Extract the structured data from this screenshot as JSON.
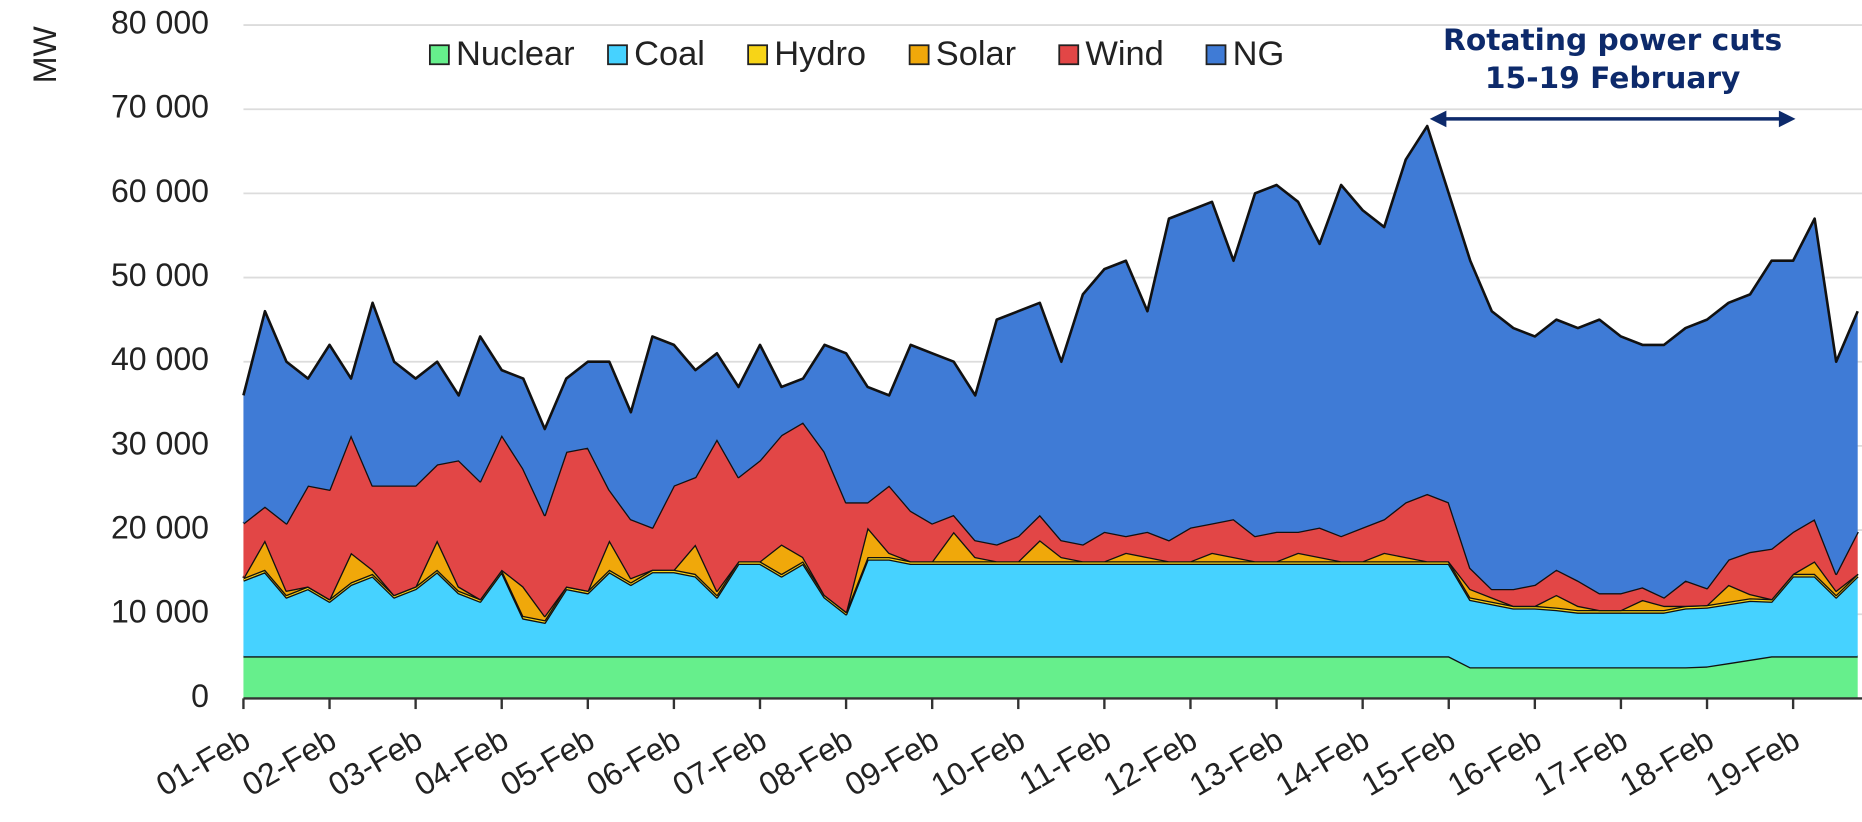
{
  "chart_data": {
    "type": "stacked_area",
    "y_label": "MW",
    "annotation": [
      "Rotating power cuts",
      "15-19 February"
    ],
    "categories": [
      "01-Feb",
      null,
      null,
      null,
      "02-Feb",
      null,
      null,
      null,
      "03-Feb",
      null,
      null,
      null,
      "04-Feb",
      null,
      null,
      null,
      "05-Feb",
      null,
      null,
      null,
      "06-Feb",
      null,
      null,
      null,
      "07-Feb",
      null,
      null,
      null,
      "08-Feb",
      null,
      null,
      null,
      "09-Feb",
      null,
      null,
      null,
      "10-Feb",
      null,
      null,
      null,
      "11-Feb",
      null,
      null,
      null,
      "12-Feb",
      null,
      null,
      null,
      "13-Feb",
      null,
      null,
      null,
      "14-Feb",
      null,
      null,
      null,
      "15-Feb",
      null,
      null,
      null,
      "16-Feb",
      null,
      null,
      null,
      "17-Feb",
      null,
      null,
      null,
      "18-Feb",
      null,
      null,
      null,
      "19-Feb",
      null,
      null,
      null
    ],
    "ylim": [
      0,
      80000
    ],
    "yticks": [
      0,
      {
        "value": 10000,
        "label": "10 000"
      },
      {
        "value": 20000,
        "label": "20 000"
      },
      {
        "value": 30000,
        "label": "30 000"
      },
      {
        "value": 40000,
        "label": "40 000"
      },
      {
        "value": 50000,
        "label": "50 000"
      },
      {
        "value": 60000,
        "label": "60 000"
      },
      {
        "value": 70000,
        "label": "70 000"
      },
      {
        "value": 80000,
        "label": "80 000"
      }
    ],
    "grid": true,
    "legend": "top",
    "series": [
      {
        "name": "Nuclear",
        "color": "#66ef8c",
        "values": [
          5000,
          5000,
          5000,
          5000,
          5000,
          5000,
          5000,
          5000,
          5000,
          5000,
          5000,
          5000,
          5000,
          5000,
          5000,
          5000,
          5000,
          5000,
          5000,
          5000,
          5000,
          5000,
          5000,
          5000,
          5000,
          5000,
          5000,
          5000,
          5000,
          5000,
          5000,
          5000,
          5000,
          5000,
          5000,
          5000,
          5000,
          5000,
          5000,
          5000,
          5000,
          5000,
          5000,
          5000,
          5000,
          5000,
          5000,
          5000,
          5000,
          5000,
          5000,
          5000,
          5000,
          5000,
          5000,
          5000,
          5000,
          3700,
          3700,
          3700,
          3700,
          3700,
          3700,
          3700,
          3700,
          3700,
          3700,
          3700,
          3800,
          4200,
          4600,
          5000,
          5000,
          5000,
          5000,
          5000
        ]
      },
      {
        "name": "Coal",
        "color": "#46d2ff",
        "values": [
          9000,
          10000,
          7000,
          8000,
          6500,
          8500,
          9500,
          7000,
          8000,
          10000,
          7500,
          6500,
          10000,
          4500,
          4000,
          8000,
          7500,
          10000,
          8500,
          10000,
          10000,
          9500,
          7000,
          11000,
          11000,
          9500,
          11000,
          7000,
          5000,
          11500,
          11500,
          11000,
          11000,
          11000,
          11000,
          11000,
          11000,
          11000,
          11000,
          11000,
          11000,
          11000,
          11000,
          11000,
          11000,
          11000,
          11000,
          11000,
          11000,
          11000,
          11000,
          11000,
          11000,
          11000,
          11000,
          11000,
          11000,
          8000,
          7500,
          7000,
          7000,
          6800,
          6500,
          6500,
          6500,
          6500,
          6500,
          7000,
          7000,
          7000,
          7000,
          6500,
          9500,
          9500,
          7000,
          9500
        ]
      },
      {
        "name": "Hydro",
        "color": "#f7d417",
        "values": [
          300,
          300,
          300,
          300,
          300,
          300,
          300,
          300,
          300,
          300,
          300,
          300,
          300,
          300,
          300,
          300,
          300,
          300,
          300,
          300,
          300,
          300,
          300,
          300,
          300,
          300,
          300,
          300,
          300,
          300,
          300,
          300,
          300,
          300,
          300,
          300,
          300,
          300,
          300,
          300,
          300,
          300,
          300,
          300,
          300,
          300,
          300,
          300,
          300,
          300,
          300,
          300,
          300,
          300,
          300,
          300,
          300,
          300,
          300,
          300,
          300,
          300,
          300,
          300,
          300,
          300,
          300,
          300,
          300,
          300,
          300,
          300,
          300,
          300,
          300,
          300
        ]
      },
      {
        "name": "Solar",
        "color": "#f0a80a",
        "values": [
          0,
          3500,
          500,
          0,
          0,
          3500,
          500,
          0,
          0,
          3500,
          500,
          0,
          0,
          3500,
          500,
          0,
          0,
          3500,
          500,
          0,
          0,
          3500,
          500,
          0,
          0,
          3500,
          500,
          0,
          0,
          3500,
          500,
          0,
          0,
          3500,
          500,
          0,
          0,
          2500,
          500,
          0,
          0,
          1000,
          500,
          0,
          0,
          1000,
          500,
          0,
          0,
          1000,
          500,
          0,
          0,
          1000,
          500,
          0,
          0,
          1000,
          500,
          0,
          0,
          1500,
          500,
          0,
          0,
          1200,
          500,
          0,
          0,
          2000,
          500,
          0,
          0,
          1500,
          500,
          0
        ]
      },
      {
        "name": "Wind",
        "color": "#e24646",
        "values": [
          6500,
          4000,
          8000,
          12000,
          13000,
          14000,
          10000,
          13000,
          12000,
          9000,
          15000,
          14000,
          16000,
          14000,
          12000,
          16000,
          17000,
          6000,
          7000,
          5000,
          10000,
          8000,
          18000,
          10000,
          12000,
          13000,
          16000,
          17000,
          13000,
          3000,
          8000,
          6000,
          4500,
          2000,
          2000,
          2000,
          3000,
          3000,
          2000,
          2000,
          3500,
          2000,
          3000,
          2500,
          4000,
          3500,
          4500,
          3000,
          3500,
          2500,
          3500,
          3000,
          4000,
          4000,
          6500,
          8000,
          7000,
          2500,
          1000,
          2000,
          2500,
          3000,
          3000,
          2000,
          2000,
          1500,
          1000,
          3000,
          2000,
          3000,
          5000,
          6000,
          5000,
          5000,
          2000,
          5000
        ]
      },
      {
        "name": "NG",
        "color": "#3f7bd6",
        "values": [
          15200,
          23200,
          19200,
          12700,
          17200,
          6700,
          21700,
          14700,
          12700,
          12200,
          7700,
          17200,
          7700,
          10700,
          10200,
          8700,
          10200,
          15200,
          12700,
          22700,
          16700,
          12700,
          10200,
          10700,
          13700,
          5700,
          5200,
          12700,
          17700,
          13700,
          10700,
          19700,
          20200,
          18200,
          17200,
          26700,
          26700,
          25200,
          21200,
          29700,
          31200,
          32700,
          26200,
          38200,
          37700,
          38200,
          30700,
          40700,
          41200,
          39200,
          33700,
          41700,
          37700,
          34700,
          40700,
          43700,
          36700,
          36500,
          33000,
          31000,
          29500,
          29700,
          30000,
          32500,
          30500,
          28800,
          30000,
          30000,
          31900,
          30500,
          30600,
          34200,
          32200,
          35700,
          25200,
          26200
        ]
      }
    ]
  }
}
